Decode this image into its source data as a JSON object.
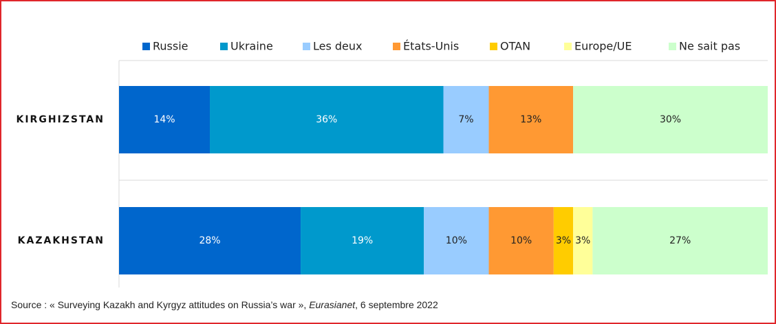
{
  "chart_data": {
    "type": "stacked-barh",
    "categories": [
      "KIRGHIZSTAN",
      "KAZAKHSTAN"
    ],
    "series": [
      {
        "name": "Russie",
        "color": "#0066cc",
        "values": [
          14,
          28
        ],
        "value_labels": [
          "14%",
          "28%"
        ]
      },
      {
        "name": "Ukraine",
        "color": "#0099cc",
        "values": [
          36,
          19
        ],
        "value_labels": [
          "36%",
          "19%"
        ]
      },
      {
        "name": "Les deux",
        "color": "#99ccff",
        "values": [
          7,
          10
        ],
        "value_labels": [
          "7%",
          "10%"
        ]
      },
      {
        "name": "États-Unis",
        "color": "#ff9933",
        "values": [
          13,
          10
        ],
        "value_labels": [
          "13%",
          "10%"
        ]
      },
      {
        "name": "OTAN",
        "color": "#ffcc00",
        "values": [
          0,
          3
        ],
        "value_labels": [
          null,
          "3%"
        ]
      },
      {
        "name": "Europe/UE",
        "color": "#ffff99",
        "values": [
          0,
          3
        ],
        "value_labels": [
          null,
          "3%"
        ]
      },
      {
        "name": "Ne sait pas",
        "color": "#ccffcc",
        "values": [
          30,
          27
        ],
        "value_labels": [
          "30%",
          "27%"
        ]
      }
    ],
    "xlim": [
      0,
      100
    ],
    "source": [
      "Source : « Surveying Kazakh and Kyrgyz attitudes on Russia’s war », ",
      "Eurasianet",
      ", 6 septembre 2022"
    ]
  }
}
